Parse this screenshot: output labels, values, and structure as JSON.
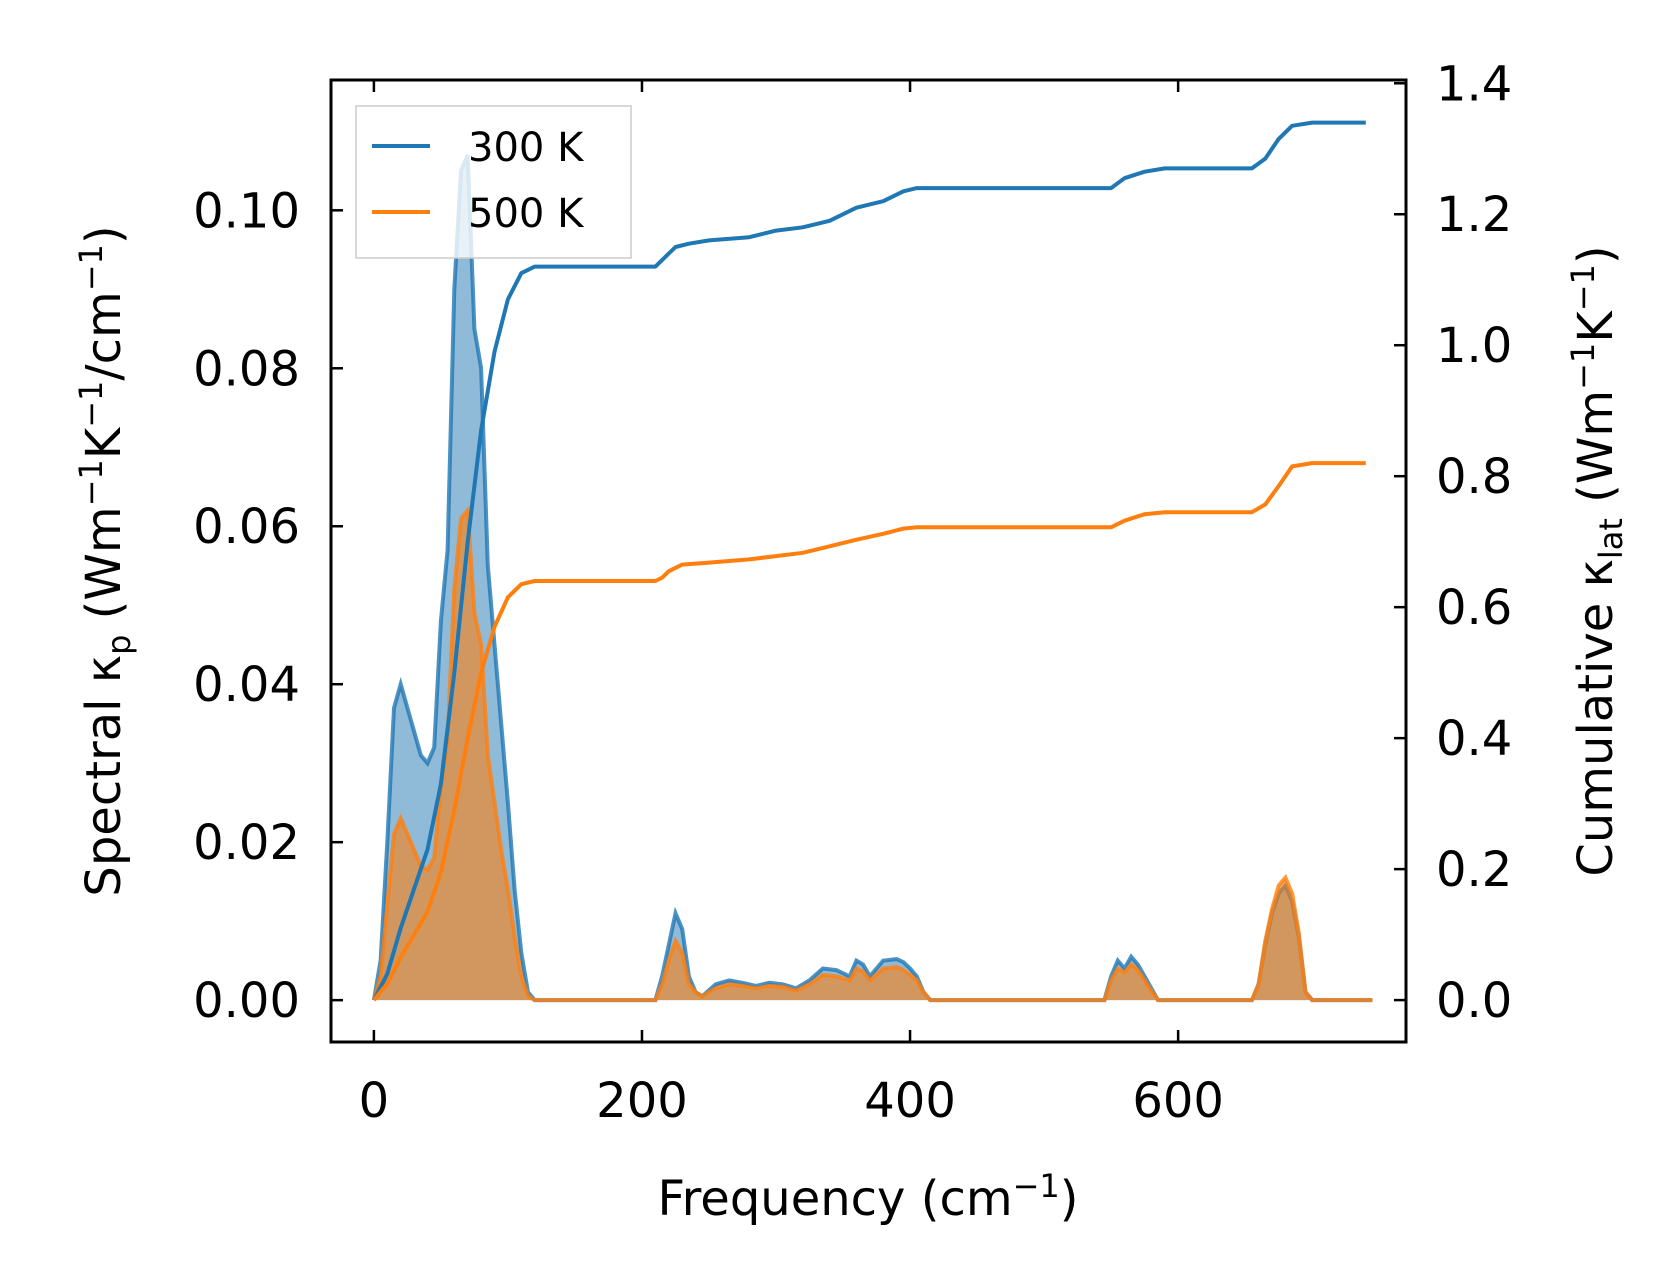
{
  "chart_data": {
    "type": "line",
    "xlabel_main": "Frequency (cm",
    "xlabel_exp": "−1",
    "xlabel_end": ")",
    "ylabel_left": {
      "prefix": "Spectral κ",
      "sub": "p",
      "t1": " (Wm",
      "e1": "−1",
      "t2": "K",
      "e2": "−1",
      "t3": "/cm",
      "e3": "−1",
      "t4": ")"
    },
    "ylabel_right": {
      "prefix": "Cumulative κ",
      "sub": "lat",
      "t1": " (Wm",
      "e1": "−1",
      "t2": "K",
      "e2": "−1",
      "t3": ")"
    },
    "xlim": [
      -32,
      770
    ],
    "ylim_left": [
      -0.0053,
      0.1165
    ],
    "ylim_right": [
      -0.064,
      1.405
    ],
    "xticks": [
      0,
      200,
      400,
      600
    ],
    "xtick_labels": [
      "0",
      "200",
      "400",
      "600"
    ],
    "yticks_left": [
      0.0,
      0.02,
      0.04,
      0.06,
      0.08,
      0.1
    ],
    "ytick_labels_left": [
      "0.00",
      "0.02",
      "0.04",
      "0.06",
      "0.08",
      "0.10"
    ],
    "yticks_right": [
      0.0,
      0.2,
      0.4,
      0.6,
      0.8,
      1.0,
      1.2,
      1.4
    ],
    "ytick_labels_right": [
      "0.0",
      "0.2",
      "0.4",
      "0.6",
      "0.8",
      "1.0",
      "1.2",
      "1.4"
    ],
    "legend": {
      "position": "top-left",
      "entries": [
        "300 K",
        "500 K"
      ]
    },
    "series": [
      {
        "name": "300 K",
        "color": "#1f77b4",
        "spectral": [
          [
            0,
            0
          ],
          [
            5,
            0.005
          ],
          [
            10,
            0.02
          ],
          [
            15,
            0.037
          ],
          [
            20,
            0.04
          ],
          [
            25,
            0.037
          ],
          [
            30,
            0.034
          ],
          [
            35,
            0.031
          ],
          [
            40,
            0.03
          ],
          [
            45,
            0.032
          ],
          [
            50,
            0.048
          ],
          [
            55,
            0.057
          ],
          [
            60,
            0.09
          ],
          [
            65,
            0.105
          ],
          [
            70,
            0.107
          ],
          [
            75,
            0.085
          ],
          [
            80,
            0.08
          ],
          [
            85,
            0.055
          ],
          [
            90,
            0.045
          ],
          [
            95,
            0.035
          ],
          [
            100,
            0.025
          ],
          [
            105,
            0.014
          ],
          [
            110,
            0.006
          ],
          [
            115,
            0.001
          ],
          [
            120,
            0
          ],
          [
            210,
            0
          ],
          [
            215,
            0.003
          ],
          [
            220,
            0.007
          ],
          [
            225,
            0.011
          ],
          [
            230,
            0.009
          ],
          [
            235,
            0.003
          ],
          [
            240,
            0.001
          ],
          [
            245,
            0.0005
          ],
          [
            255,
            0.002
          ],
          [
            265,
            0.0025
          ],
          [
            275,
            0.0022
          ],
          [
            285,
            0.0018
          ],
          [
            295,
            0.0022
          ],
          [
            305,
            0.002
          ],
          [
            315,
            0.0015
          ],
          [
            325,
            0.0025
          ],
          [
            335,
            0.004
          ],
          [
            345,
            0.0038
          ],
          [
            355,
            0.003
          ],
          [
            360,
            0.005
          ],
          [
            365,
            0.0045
          ],
          [
            370,
            0.003
          ],
          [
            380,
            0.005
          ],
          [
            390,
            0.0052
          ],
          [
            395,
            0.0048
          ],
          [
            400,
            0.004
          ],
          [
            405,
            0.003
          ],
          [
            410,
            0.001
          ],
          [
            415,
            0
          ],
          [
            545,
            0
          ],
          [
            550,
            0.003
          ],
          [
            555,
            0.005
          ],
          [
            560,
            0.004
          ],
          [
            565,
            0.0055
          ],
          [
            570,
            0.0045
          ],
          [
            575,
            0.003
          ],
          [
            580,
            0.0015
          ],
          [
            585,
            0
          ],
          [
            655,
            0
          ],
          [
            660,
            0.002
          ],
          [
            665,
            0.007
          ],
          [
            670,
            0.011
          ],
          [
            675,
            0.0135
          ],
          [
            680,
            0.0145
          ],
          [
            685,
            0.0125
          ],
          [
            690,
            0.008
          ],
          [
            695,
            0.001
          ],
          [
            700,
            0
          ],
          [
            745,
            0
          ]
        ],
        "cumulative": [
          [
            0,
            0
          ],
          [
            10,
            0.04
          ],
          [
            20,
            0.11
          ],
          [
            30,
            0.17
          ],
          [
            40,
            0.23
          ],
          [
            50,
            0.33
          ],
          [
            60,
            0.5
          ],
          [
            70,
            0.7
          ],
          [
            80,
            0.87
          ],
          [
            90,
            0.99
          ],
          [
            100,
            1.07
          ],
          [
            110,
            1.11
          ],
          [
            120,
            1.12
          ],
          [
            210,
            1.12
          ],
          [
            215,
            1.13
          ],
          [
            220,
            1.14
          ],
          [
            225,
            1.15
          ],
          [
            235,
            1.155
          ],
          [
            250,
            1.16
          ],
          [
            280,
            1.165
          ],
          [
            300,
            1.175
          ],
          [
            320,
            1.18
          ],
          [
            340,
            1.19
          ],
          [
            360,
            1.21
          ],
          [
            380,
            1.22
          ],
          [
            395,
            1.235
          ],
          [
            405,
            1.24
          ],
          [
            550,
            1.24
          ],
          [
            560,
            1.255
          ],
          [
            575,
            1.265
          ],
          [
            590,
            1.27
          ],
          [
            655,
            1.27
          ],
          [
            665,
            1.285
          ],
          [
            675,
            1.315
          ],
          [
            685,
            1.335
          ],
          [
            700,
            1.34
          ],
          [
            740,
            1.34
          ]
        ]
      },
      {
        "name": "500 K",
        "color": "#ff7f0e",
        "spectral": [
          [
            0,
            0
          ],
          [
            5,
            0.003
          ],
          [
            10,
            0.012
          ],
          [
            15,
            0.021
          ],
          [
            20,
            0.023
          ],
          [
            25,
            0.021
          ],
          [
            30,
            0.019
          ],
          [
            35,
            0.017
          ],
          [
            40,
            0.0165
          ],
          [
            45,
            0.018
          ],
          [
            50,
            0.027
          ],
          [
            55,
            0.033
          ],
          [
            60,
            0.052
          ],
          [
            65,
            0.061
          ],
          [
            70,
            0.062
          ],
          [
            75,
            0.049
          ],
          [
            80,
            0.045
          ],
          [
            85,
            0.031
          ],
          [
            90,
            0.025
          ],
          [
            95,
            0.019
          ],
          [
            100,
            0.014
          ],
          [
            105,
            0.008
          ],
          [
            110,
            0.003
          ],
          [
            115,
            0.0005
          ],
          [
            120,
            0
          ],
          [
            210,
            0
          ],
          [
            215,
            0.002
          ],
          [
            220,
            0.005
          ],
          [
            225,
            0.0075
          ],
          [
            230,
            0.006
          ],
          [
            235,
            0.002
          ],
          [
            240,
            0.001
          ],
          [
            245,
            0.0005
          ],
          [
            255,
            0.0015
          ],
          [
            265,
            0.002
          ],
          [
            275,
            0.0018
          ],
          [
            285,
            0.0015
          ],
          [
            295,
            0.0018
          ],
          [
            305,
            0.0017
          ],
          [
            315,
            0.0012
          ],
          [
            325,
            0.002
          ],
          [
            335,
            0.0032
          ],
          [
            345,
            0.003
          ],
          [
            355,
            0.0025
          ],
          [
            360,
            0.004
          ],
          [
            365,
            0.0036
          ],
          [
            370,
            0.0025
          ],
          [
            380,
            0.004
          ],
          [
            390,
            0.0042
          ],
          [
            395,
            0.0038
          ],
          [
            400,
            0.0032
          ],
          [
            405,
            0.0025
          ],
          [
            410,
            0.001
          ],
          [
            415,
            0
          ],
          [
            545,
            0
          ],
          [
            550,
            0.0025
          ],
          [
            555,
            0.004
          ],
          [
            560,
            0.0035
          ],
          [
            565,
            0.0045
          ],
          [
            570,
            0.0038
          ],
          [
            575,
            0.0025
          ],
          [
            580,
            0.0012
          ],
          [
            585,
            0
          ],
          [
            655,
            0
          ],
          [
            660,
            0.002
          ],
          [
            665,
            0.0075
          ],
          [
            670,
            0.0115
          ],
          [
            675,
            0.0145
          ],
          [
            680,
            0.0155
          ],
          [
            685,
            0.0135
          ],
          [
            690,
            0.0085
          ],
          [
            695,
            0.001
          ],
          [
            700,
            0
          ],
          [
            745,
            0
          ]
        ],
        "cumulative": [
          [
            0,
            0
          ],
          [
            10,
            0.025
          ],
          [
            20,
            0.065
          ],
          [
            30,
            0.1
          ],
          [
            40,
            0.135
          ],
          [
            50,
            0.195
          ],
          [
            60,
            0.29
          ],
          [
            70,
            0.4
          ],
          [
            80,
            0.5
          ],
          [
            90,
            0.57
          ],
          [
            100,
            0.615
          ],
          [
            110,
            0.635
          ],
          [
            120,
            0.64
          ],
          [
            210,
            0.64
          ],
          [
            215,
            0.645
          ],
          [
            220,
            0.655
          ],
          [
            230,
            0.665
          ],
          [
            250,
            0.668
          ],
          [
            280,
            0.673
          ],
          [
            300,
            0.678
          ],
          [
            320,
            0.683
          ],
          [
            340,
            0.693
          ],
          [
            360,
            0.703
          ],
          [
            380,
            0.712
          ],
          [
            395,
            0.72
          ],
          [
            405,
            0.722
          ],
          [
            550,
            0.722
          ],
          [
            560,
            0.732
          ],
          [
            575,
            0.742
          ],
          [
            590,
            0.745
          ],
          [
            655,
            0.745
          ],
          [
            665,
            0.757
          ],
          [
            675,
            0.785
          ],
          [
            685,
            0.815
          ],
          [
            700,
            0.82
          ],
          [
            740,
            0.82
          ]
        ]
      }
    ]
  }
}
